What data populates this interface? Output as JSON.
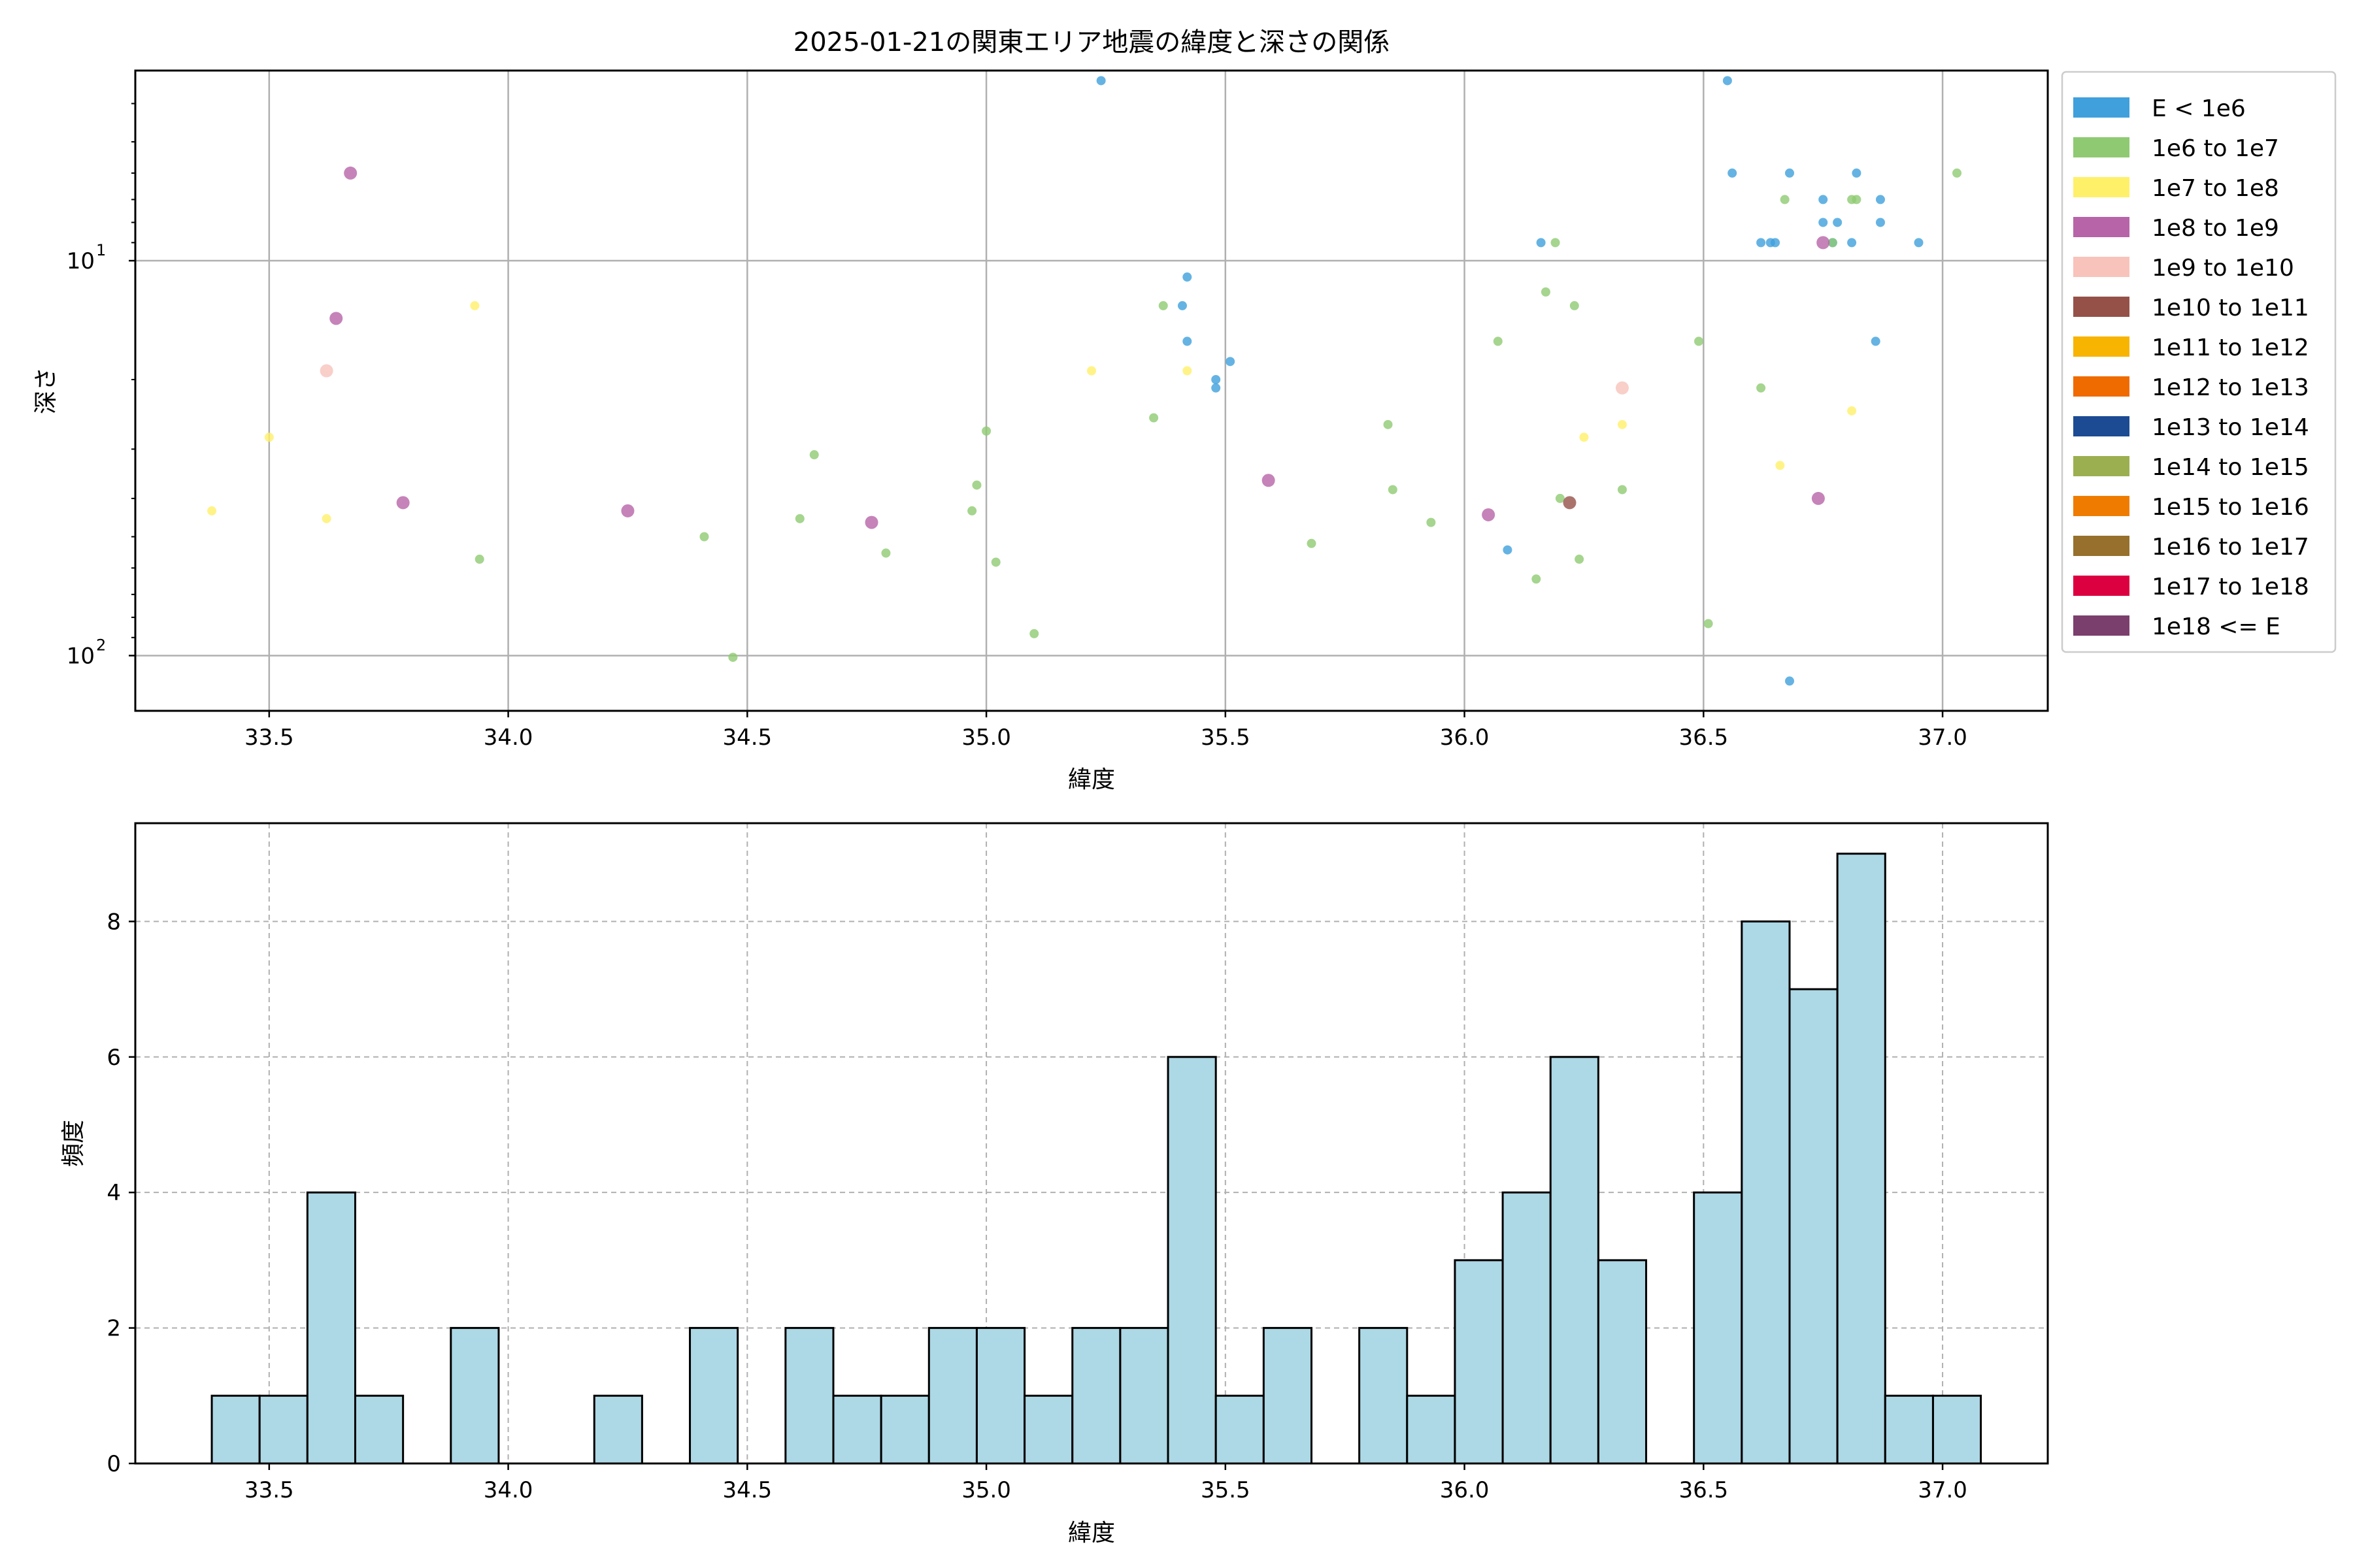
{
  "chart_data": [
    {
      "type": "scatter",
      "title": "2025-01-21の関東エリア地震の緯度と深さの関係",
      "xlabel": "緯度",
      "ylabel": "深さ",
      "xlim": [
        33.22,
        37.22
      ],
      "ylim": [
        138,
        3.3
      ],
      "y_scale": "log",
      "y_inverted": true,
      "grid": true,
      "legend_position": "outside-right",
      "x_ticks": [
        "33.5",
        "34.0",
        "34.5",
        "35.0",
        "35.5",
        "36.0",
        "36.5",
        "37.0"
      ],
      "y_ticks": [
        {
          "value": 10,
          "base": "10",
          "exp": "1"
        },
        {
          "value": 100,
          "base": "10",
          "exp": "2"
        }
      ],
      "legend": [
        {
          "label": "E < 1e6",
          "color": "#3fa0dc"
        },
        {
          "label": "1e6 to 1e7",
          "color": "#8fca72"
        },
        {
          "label": "1e7 to 1e8",
          "color": "#fff06a"
        },
        {
          "label": "1e8 to 1e9",
          "color": "#b764a8"
        },
        {
          "label": "1e9 to 1e10",
          "color": "#f7c3bb"
        },
        {
          "label": "1e10 to 1e11",
          "color": "#955148"
        },
        {
          "label": "1e11 to 1e12",
          "color": "#f7b400"
        },
        {
          "label": "1e12 to 1e13",
          "color": "#ef6b00"
        },
        {
          "label": "1e13 to 1e14",
          "color": "#1c4b94"
        },
        {
          "label": "1e14 to 1e15",
          "color": "#9caf50"
        },
        {
          "label": "1e15 to 1e16",
          "color": "#ef7c00"
        },
        {
          "label": "1e16 to 1e17",
          "color": "#96702c"
        },
        {
          "label": "1e17 to 1e18",
          "color": "#dc0040"
        },
        {
          "label": "1e18 <= E",
          "color": "#7b3f6e"
        }
      ],
      "series": [
        {
          "name": "E < 1e6",
          "color": "#3fa0dc",
          "points": [
            [
              35.24,
              3.5
            ],
            [
              36.55,
              3.5
            ],
            [
              36.56,
              6.0
            ],
            [
              36.68,
              6.0
            ],
            [
              36.82,
              6.0
            ],
            [
              36.75,
              7.0
            ],
            [
              36.87,
              7.0
            ],
            [
              36.75,
              8.0
            ],
            [
              36.78,
              8.0
            ],
            [
              36.87,
              8.0
            ],
            [
              36.16,
              9.0
            ],
            [
              36.62,
              9.0
            ],
            [
              36.64,
              9.0
            ],
            [
              36.65,
              9.0
            ],
            [
              36.77,
              9.0
            ],
            [
              36.81,
              9.0
            ],
            [
              36.95,
              9.0
            ],
            [
              35.42,
              11.0
            ],
            [
              35.41,
              13.0
            ],
            [
              35.42,
              16.0
            ],
            [
              36.86,
              16.0
            ],
            [
              35.51,
              18.0
            ],
            [
              35.48,
              20.0
            ],
            [
              35.48,
              21.0
            ],
            [
              36.09,
              54.0
            ],
            [
              36.68,
              116.0
            ]
          ]
        },
        {
          "name": "1e6 to 1e7",
          "color": "#8fca72",
          "points": [
            [
              37.03,
              6.0
            ],
            [
              36.67,
              7.0
            ],
            [
              36.81,
              7.0
            ],
            [
              36.82,
              7.0
            ],
            [
              36.19,
              9.0
            ],
            [
              36.77,
              9.0
            ],
            [
              36.17,
              12.0
            ],
            [
              35.37,
              13.0
            ],
            [
              36.23,
              13.0
            ],
            [
              36.07,
              16.0
            ],
            [
              36.49,
              16.0
            ],
            [
              36.62,
              21.0
            ],
            [
              35.35,
              25.0
            ],
            [
              35.84,
              26.0
            ],
            [
              35.0,
              27.0
            ],
            [
              34.64,
              31.0
            ],
            [
              34.98,
              37.0
            ],
            [
              35.85,
              38.0
            ],
            [
              36.33,
              38.0
            ],
            [
              36.2,
              40.0
            ],
            [
              34.97,
              43.0
            ],
            [
              34.61,
              45.0
            ],
            [
              35.93,
              46.0
            ],
            [
              34.41,
              50.0
            ],
            [
              35.68,
              52.0
            ],
            [
              34.79,
              55.0
            ],
            [
              33.94,
              57.0
            ],
            [
              35.02,
              58.0
            ],
            [
              36.24,
              57.0
            ],
            [
              36.15,
              64.0
            ],
            [
              36.51,
              83.0
            ],
            [
              35.1,
              88.0
            ],
            [
              34.47,
              101.0
            ]
          ]
        },
        {
          "name": "1e7 to 1e8",
          "color": "#fff06a",
          "points": [
            [
              33.93,
              13.0
            ],
            [
              35.22,
              19.0
            ],
            [
              35.42,
              19.0
            ],
            [
              36.81,
              24.0
            ],
            [
              36.33,
              26.0
            ],
            [
              33.5,
              28.0
            ],
            [
              36.25,
              28.0
            ],
            [
              36.66,
              33.0
            ],
            [
              33.38,
              43.0
            ],
            [
              33.62,
              45.0
            ]
          ]
        },
        {
          "name": "1e8 to 1e9",
          "color": "#b764a8",
          "points": [
            [
              33.67,
              6.0
            ],
            [
              33.64,
              14.0
            ],
            [
              36.75,
              9.0
            ],
            [
              35.59,
              36.0
            ],
            [
              33.78,
              41.0
            ],
            [
              36.74,
              40.0
            ],
            [
              34.25,
              43.0
            ],
            [
              36.05,
              44.0
            ],
            [
              34.76,
              46.0
            ]
          ]
        },
        {
          "name": "1e9 to 1e10",
          "color": "#f7c3bb",
          "points": [
            [
              33.62,
              19.0
            ],
            [
              36.33,
              21.0
            ]
          ]
        },
        {
          "name": "1e10 to 1e11",
          "color": "#955148",
          "points": [
            [
              36.22,
              41.0
            ]
          ]
        }
      ]
    },
    {
      "type": "bar",
      "xlabel": "緯度",
      "ylabel": "頻度",
      "xlim": [
        33.22,
        37.22
      ],
      "ylim": [
        0,
        9.45
      ],
      "grid": true,
      "x_ticks": [
        "33.5",
        "34.0",
        "34.5",
        "35.0",
        "35.5",
        "36.0",
        "36.5",
        "37.0"
      ],
      "y_ticks": [
        "0",
        "2",
        "4",
        "6",
        "8"
      ],
      "bin_start": 33.38,
      "bin_width": 0.1,
      "bar_color": "#add8e6",
      "values": [
        1,
        1,
        4,
        1,
        0,
        2,
        0,
        0,
        1,
        0,
        2,
        0,
        2,
        1,
        1,
        2,
        2,
        1,
        2,
        2,
        6,
        1,
        2,
        0,
        2,
        1,
        3,
        4,
        6,
        3,
        0,
        4,
        8,
        7,
        9,
        1,
        1
      ]
    }
  ]
}
